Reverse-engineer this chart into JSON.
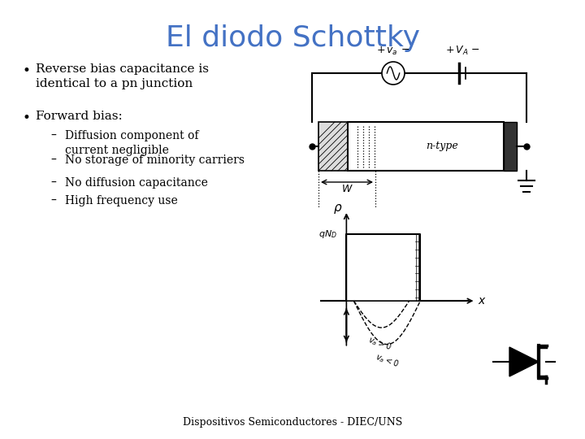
{
  "title": "El diodo Schottky",
  "title_color": "#4472C4",
  "title_fontsize": 26,
  "background_color": "#ffffff",
  "bullet1": "Reverse bias capacitance is\nidentical to a pn junction",
  "bullet2": "Forward bias:",
  "sub_bullets": [
    "Diffusion component of\ncurrent negligible",
    "No storage of minority carriers",
    "No diffusion capacitance",
    "High frequency use"
  ],
  "footer": "Dispositivos Semiconductores - DIEC/UNS",
  "footer_fontsize": 9,
  "text_fontsize": 11,
  "sub_fontsize": 10
}
